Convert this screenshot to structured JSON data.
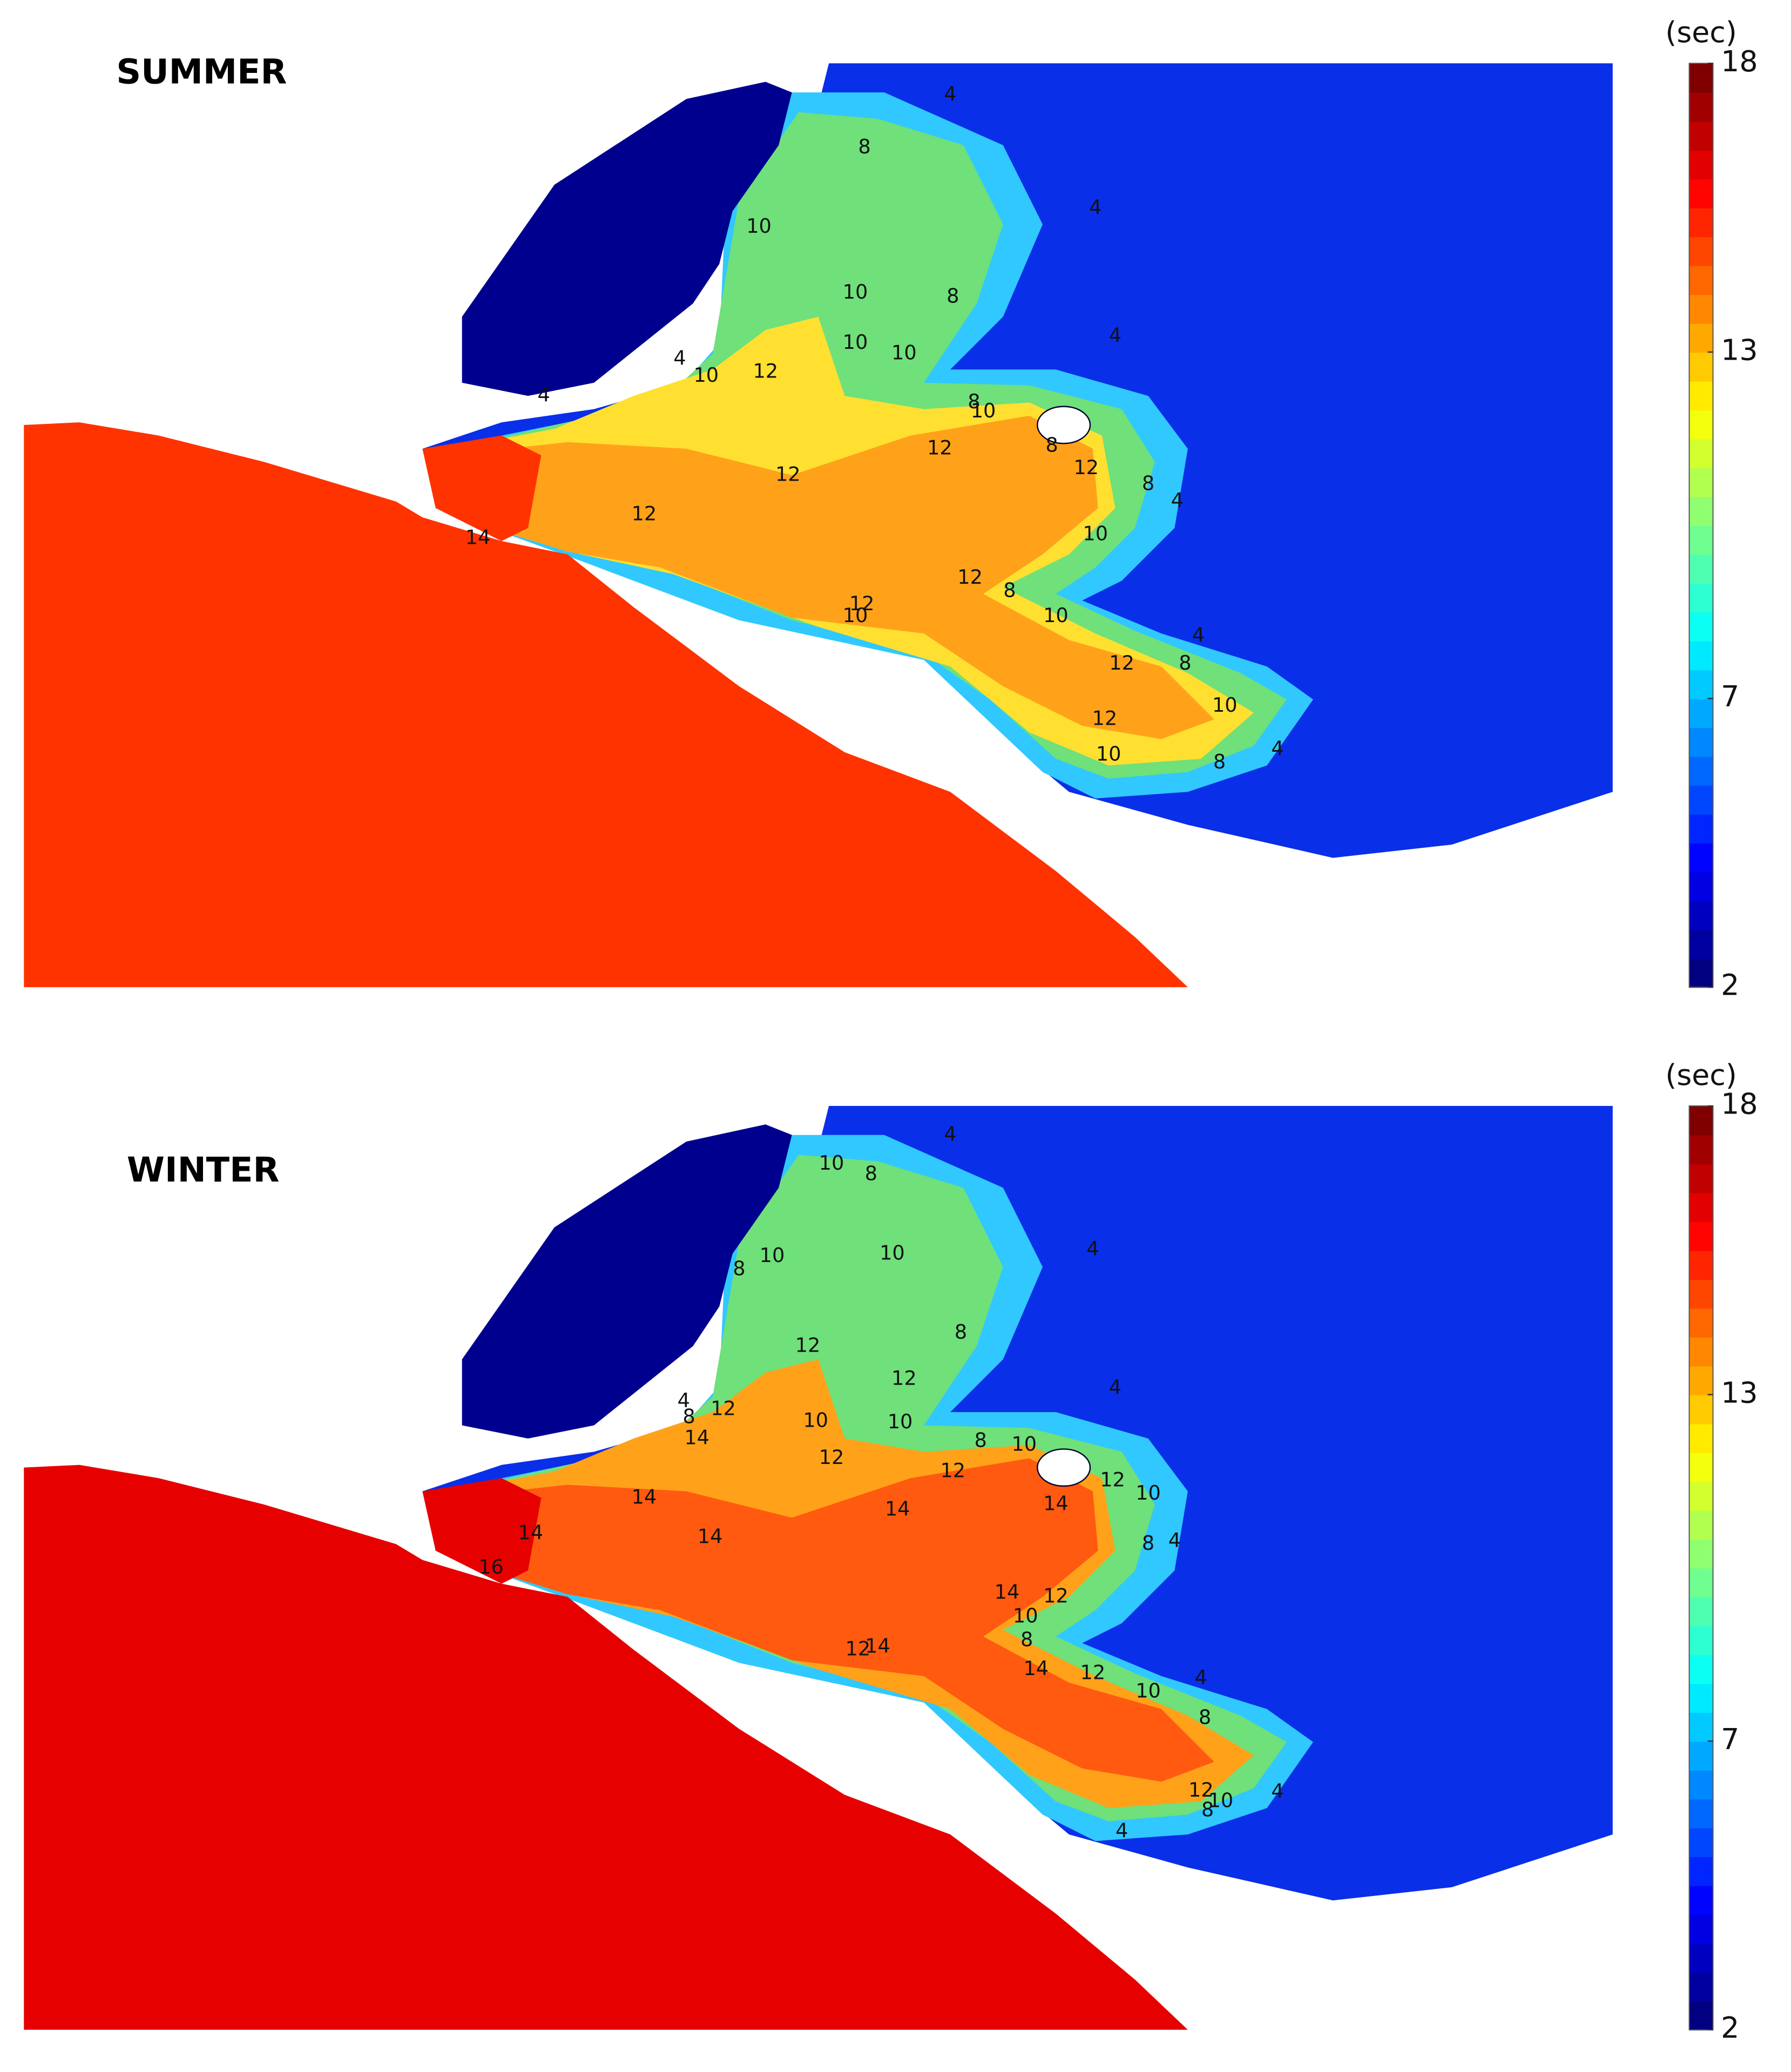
{
  "panels": [
    {
      "title": "SUMMER",
      "colorbar": {
        "label": "(sec)",
        "lim": [
          2,
          18
        ],
        "ticks": [
          2,
          7,
          13,
          18
        ]
      },
      "contour_labels": [
        4,
        8,
        4,
        10,
        10,
        8,
        10,
        10,
        4,
        4,
        10,
        12,
        4,
        8,
        10,
        12,
        8,
        12,
        12,
        8,
        4,
        12,
        14,
        10,
        12,
        8,
        12,
        10,
        10,
        4,
        12,
        8,
        10,
        12,
        10,
        8,
        4
      ]
    },
    {
      "title": "WINTER",
      "colorbar": {
        "label": "(sec)",
        "lim": [
          2,
          18
        ],
        "ticks": [
          2,
          7,
          13,
          18
        ]
      },
      "contour_labels": [
        4,
        10,
        8,
        4,
        10,
        8,
        10,
        12,
        8,
        4,
        12,
        4,
        8,
        12,
        10,
        10,
        14,
        12,
        8,
        10,
        12,
        10,
        12,
        14,
        14,
        14,
        14,
        14,
        8,
        4,
        16,
        14,
        12,
        10,
        8,
        12,
        14,
        14,
        12,
        10,
        4,
        8,
        12,
        10,
        8,
        4,
        4
      ]
    }
  ]
}
